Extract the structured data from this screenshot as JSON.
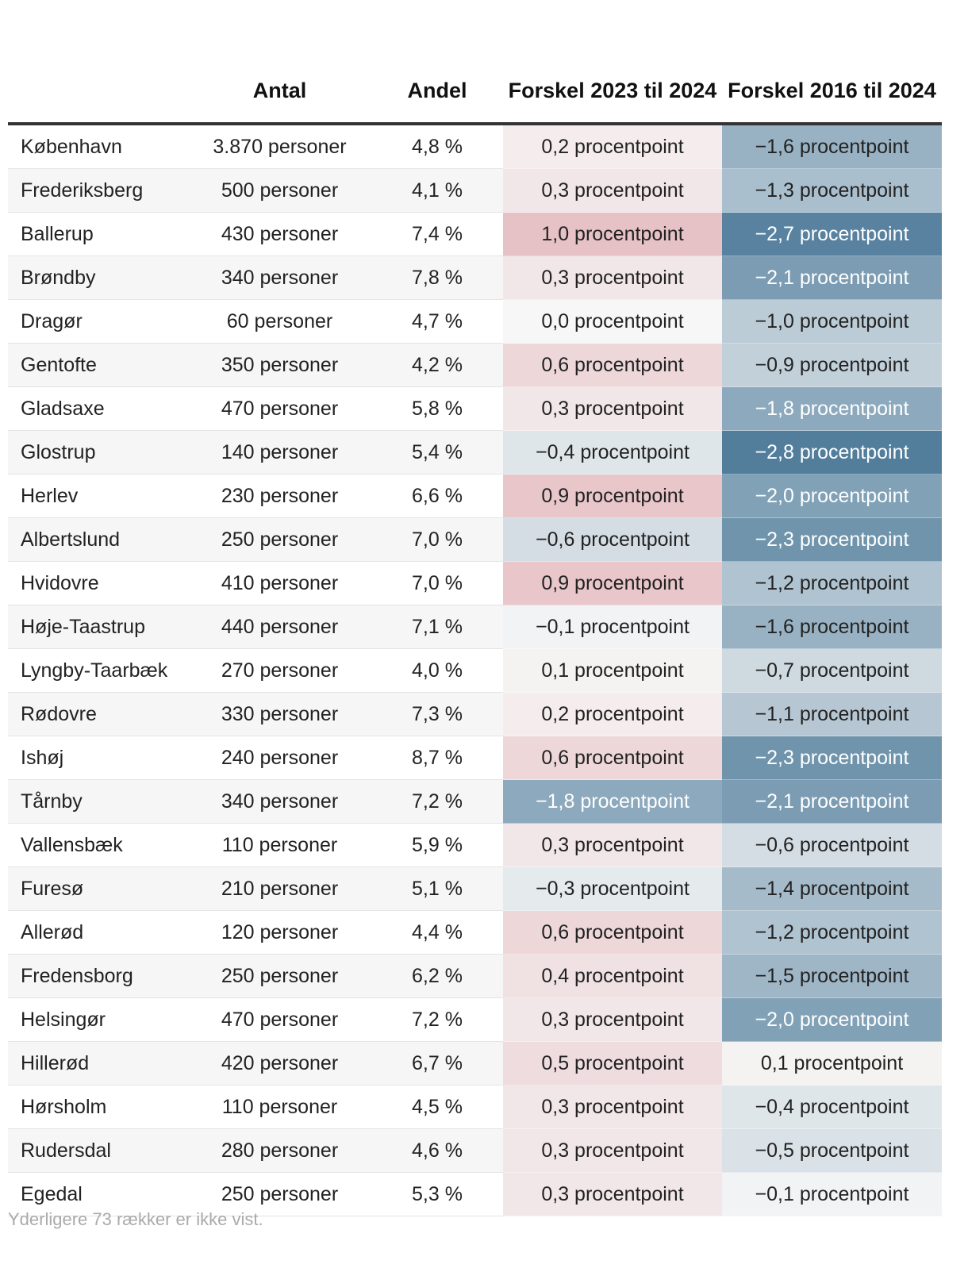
{
  "table": {
    "headers": {
      "name": "",
      "antal": "Antal",
      "andel": "Andel",
      "diff_2023_2024": "Forskel 2023 til 2024",
      "diff_2016_2024": "Forskel 2016 til 2024"
    },
    "rows": [
      {
        "name": "København",
        "antal": "3.870 personer",
        "andel": "4,8 %",
        "d23": "0,2 procentpoint",
        "d16": "−1,6 procentpoint"
      },
      {
        "name": "Frederiksberg",
        "antal": "500 personer",
        "andel": "4,1 %",
        "d23": "0,3 procentpoint",
        "d16": "−1,3 procentpoint"
      },
      {
        "name": "Ballerup",
        "antal": "430 personer",
        "andel": "7,4 %",
        "d23": "1,0 procentpoint",
        "d16": "−2,7 procentpoint"
      },
      {
        "name": "Brøndby",
        "antal": "340 personer",
        "andel": "7,8 %",
        "d23": "0,3 procentpoint",
        "d16": "−2,1 procentpoint"
      },
      {
        "name": "Dragør",
        "antal": "60 personer",
        "andel": "4,7 %",
        "d23": "0,0 procentpoint",
        "d16": "−1,0 procentpoint"
      },
      {
        "name": "Gentofte",
        "antal": "350 personer",
        "andel": "4,2 %",
        "d23": "0,6 procentpoint",
        "d16": "−0,9 procentpoint"
      },
      {
        "name": "Gladsaxe",
        "antal": "470 personer",
        "andel": "5,8 %",
        "d23": "0,3 procentpoint",
        "d16": "−1,8 procentpoint"
      },
      {
        "name": "Glostrup",
        "antal": "140 personer",
        "andel": "5,4 %",
        "d23": "−0,4 procentpoint",
        "d16": "−2,8 procentpoint"
      },
      {
        "name": "Herlev",
        "antal": "230 personer",
        "andel": "6,6 %",
        "d23": "0,9 procentpoint",
        "d16": "−2,0 procentpoint"
      },
      {
        "name": "Albertslund",
        "antal": "250 personer",
        "andel": "7,0 %",
        "d23": "−0,6 procentpoint",
        "d16": "−2,3 procentpoint"
      },
      {
        "name": "Hvidovre",
        "antal": "410 personer",
        "andel": "7,0 %",
        "d23": "0,9 procentpoint",
        "d16": "−1,2 procentpoint"
      },
      {
        "name": "Høje-Taastrup",
        "antal": "440 personer",
        "andel": "7,1 %",
        "d23": "−0,1 procentpoint",
        "d16": "−1,6 procentpoint"
      },
      {
        "name": "Lyngby-Taarbæk",
        "antal": "270 personer",
        "andel": "4,0 %",
        "d23": "0,1 procentpoint",
        "d16": "−0,7 procentpoint"
      },
      {
        "name": "Rødovre",
        "antal": "330 personer",
        "andel": "7,3 %",
        "d23": "0,2 procentpoint",
        "d16": "−1,1 procentpoint"
      },
      {
        "name": "Ishøj",
        "antal": "240 personer",
        "andel": "8,7 %",
        "d23": "0,6 procentpoint",
        "d16": "−2,3 procentpoint"
      },
      {
        "name": "Tårnby",
        "antal": "340 personer",
        "andel": "7,2 %",
        "d23": "−1,8 procentpoint",
        "d16": "−2,1 procentpoint"
      },
      {
        "name": "Vallensbæk",
        "antal": "110 personer",
        "andel": "5,9 %",
        "d23": "0,3 procentpoint",
        "d16": "−0,6 procentpoint"
      },
      {
        "name": "Furesø",
        "antal": "210 personer",
        "andel": "5,1 %",
        "d23": "−0,3 procentpoint",
        "d16": "−1,4 procentpoint"
      },
      {
        "name": "Allerød",
        "antal": "120 personer",
        "andel": "4,4 %",
        "d23": "0,6 procentpoint",
        "d16": "−1,2 procentpoint"
      },
      {
        "name": "Fredensborg",
        "antal": "250 personer",
        "andel": "6,2 %",
        "d23": "0,4 procentpoint",
        "d16": "−1,5 procentpoint"
      },
      {
        "name": "Helsingør",
        "antal": "470 personer",
        "andel": "7,2 %",
        "d23": "0,3 procentpoint",
        "d16": "−2,0 procentpoint"
      },
      {
        "name": "Hillerød",
        "antal": "420 personer",
        "andel": "6,7 %",
        "d23": "0,5 procentpoint",
        "d16": "0,1 procentpoint"
      },
      {
        "name": "Hørsholm",
        "antal": "110 personer",
        "andel": "4,5 %",
        "d23": "0,3 procentpoint",
        "d16": "−0,4 procentpoint"
      },
      {
        "name": "Rudersdal",
        "antal": "280 personer",
        "andel": "4,6 %",
        "d23": "0,3 procentpoint",
        "d16": "−0,5 procentpoint"
      },
      {
        "name": "Egedal",
        "antal": "250 personer",
        "andel": "5,3 %",
        "d23": "0,3 procentpoint",
        "d16": "−0,1 procentpoint"
      }
    ]
  },
  "footnote": "Yderligere 73 rækker er ikke vist.",
  "colors": {
    "positive_max": "#e6c1c5",
    "neutral": "#f7f7f7",
    "negative_max": "#527e9c",
    "header_rule": "#333333",
    "footnote": "#aaaaaa"
  },
  "chart_data": {
    "type": "table",
    "columns": [
      "",
      "Antal",
      "Andel",
      "Forskel 2023 til 2024",
      "Forskel 2016 til 2024"
    ],
    "units": {
      "antal": "personer",
      "andel": "%",
      "forskel": "procentpoint"
    },
    "rows": [
      {
        "kommune": "København",
        "antal": 3870,
        "andel": 4.8,
        "forskel_2023_2024": 0.2,
        "forskel_2016_2024": -1.6
      },
      {
        "kommune": "Frederiksberg",
        "antal": 500,
        "andel": 4.1,
        "forskel_2023_2024": 0.3,
        "forskel_2016_2024": -1.3
      },
      {
        "kommune": "Ballerup",
        "antal": 430,
        "andel": 7.4,
        "forskel_2023_2024": 1.0,
        "forskel_2016_2024": -2.7
      },
      {
        "kommune": "Brøndby",
        "antal": 340,
        "andel": 7.8,
        "forskel_2023_2024": 0.3,
        "forskel_2016_2024": -2.1
      },
      {
        "kommune": "Dragør",
        "antal": 60,
        "andel": 4.7,
        "forskel_2023_2024": 0.0,
        "forskel_2016_2024": -1.0
      },
      {
        "kommune": "Gentofte",
        "antal": 350,
        "andel": 4.2,
        "forskel_2023_2024": 0.6,
        "forskel_2016_2024": -0.9
      },
      {
        "kommune": "Gladsaxe",
        "antal": 470,
        "andel": 5.8,
        "forskel_2023_2024": 0.3,
        "forskel_2016_2024": -1.8
      },
      {
        "kommune": "Glostrup",
        "antal": 140,
        "andel": 5.4,
        "forskel_2023_2024": -0.4,
        "forskel_2016_2024": -2.8
      },
      {
        "kommune": "Herlev",
        "antal": 230,
        "andel": 6.6,
        "forskel_2023_2024": 0.9,
        "forskel_2016_2024": -2.0
      },
      {
        "kommune": "Albertslund",
        "antal": 250,
        "andel": 7.0,
        "forskel_2023_2024": -0.6,
        "forskel_2016_2024": -2.3
      },
      {
        "kommune": "Hvidovre",
        "antal": 410,
        "andel": 7.0,
        "forskel_2023_2024": 0.9,
        "forskel_2016_2024": -1.2
      },
      {
        "kommune": "Høje-Taastrup",
        "antal": 440,
        "andel": 7.1,
        "forskel_2023_2024": -0.1,
        "forskel_2016_2024": -1.6
      },
      {
        "kommune": "Lyngby-Taarbæk",
        "antal": 270,
        "andel": 4.0,
        "forskel_2023_2024": 0.1,
        "forskel_2016_2024": -0.7
      },
      {
        "kommune": "Rødovre",
        "antal": 330,
        "andel": 7.3,
        "forskel_2023_2024": 0.2,
        "forskel_2016_2024": -1.1
      },
      {
        "kommune": "Ishøj",
        "antal": 240,
        "andel": 8.7,
        "forskel_2023_2024": 0.6,
        "forskel_2016_2024": -2.3
      },
      {
        "kommune": "Tårnby",
        "antal": 340,
        "andel": 7.2,
        "forskel_2023_2024": -1.8,
        "forskel_2016_2024": -2.1
      },
      {
        "kommune": "Vallensbæk",
        "antal": 110,
        "andel": 5.9,
        "forskel_2023_2024": 0.3,
        "forskel_2016_2024": -0.6
      },
      {
        "kommune": "Furesø",
        "antal": 210,
        "andel": 5.1,
        "forskel_2023_2024": -0.3,
        "forskel_2016_2024": -1.4
      },
      {
        "kommune": "Allerød",
        "antal": 120,
        "andel": 4.4,
        "forskel_2023_2024": 0.6,
        "forskel_2016_2024": -1.2
      },
      {
        "kommune": "Fredensborg",
        "antal": 250,
        "andel": 6.2,
        "forskel_2023_2024": 0.4,
        "forskel_2016_2024": -1.5
      },
      {
        "kommune": "Helsingør",
        "antal": 470,
        "andel": 7.2,
        "forskel_2023_2024": 0.3,
        "forskel_2016_2024": -2.0
      },
      {
        "kommune": "Hillerød",
        "antal": 420,
        "andel": 6.7,
        "forskel_2023_2024": 0.5,
        "forskel_2016_2024": 0.1
      },
      {
        "kommune": "Hørsholm",
        "antal": 110,
        "andel": 4.5,
        "forskel_2023_2024": 0.3,
        "forskel_2016_2024": -0.4
      },
      {
        "kommune": "Rudersdal",
        "antal": 280,
        "andel": 4.6,
        "forskel_2023_2024": 0.3,
        "forskel_2016_2024": -0.5
      },
      {
        "kommune": "Egedal",
        "antal": 250,
        "andel": 5.3,
        "forskel_2023_2024": 0.3,
        "forskel_2016_2024": -0.1
      }
    ],
    "heat_columns": [
      "forskel_2023_2024",
      "forskel_2016_2024"
    ]
  }
}
